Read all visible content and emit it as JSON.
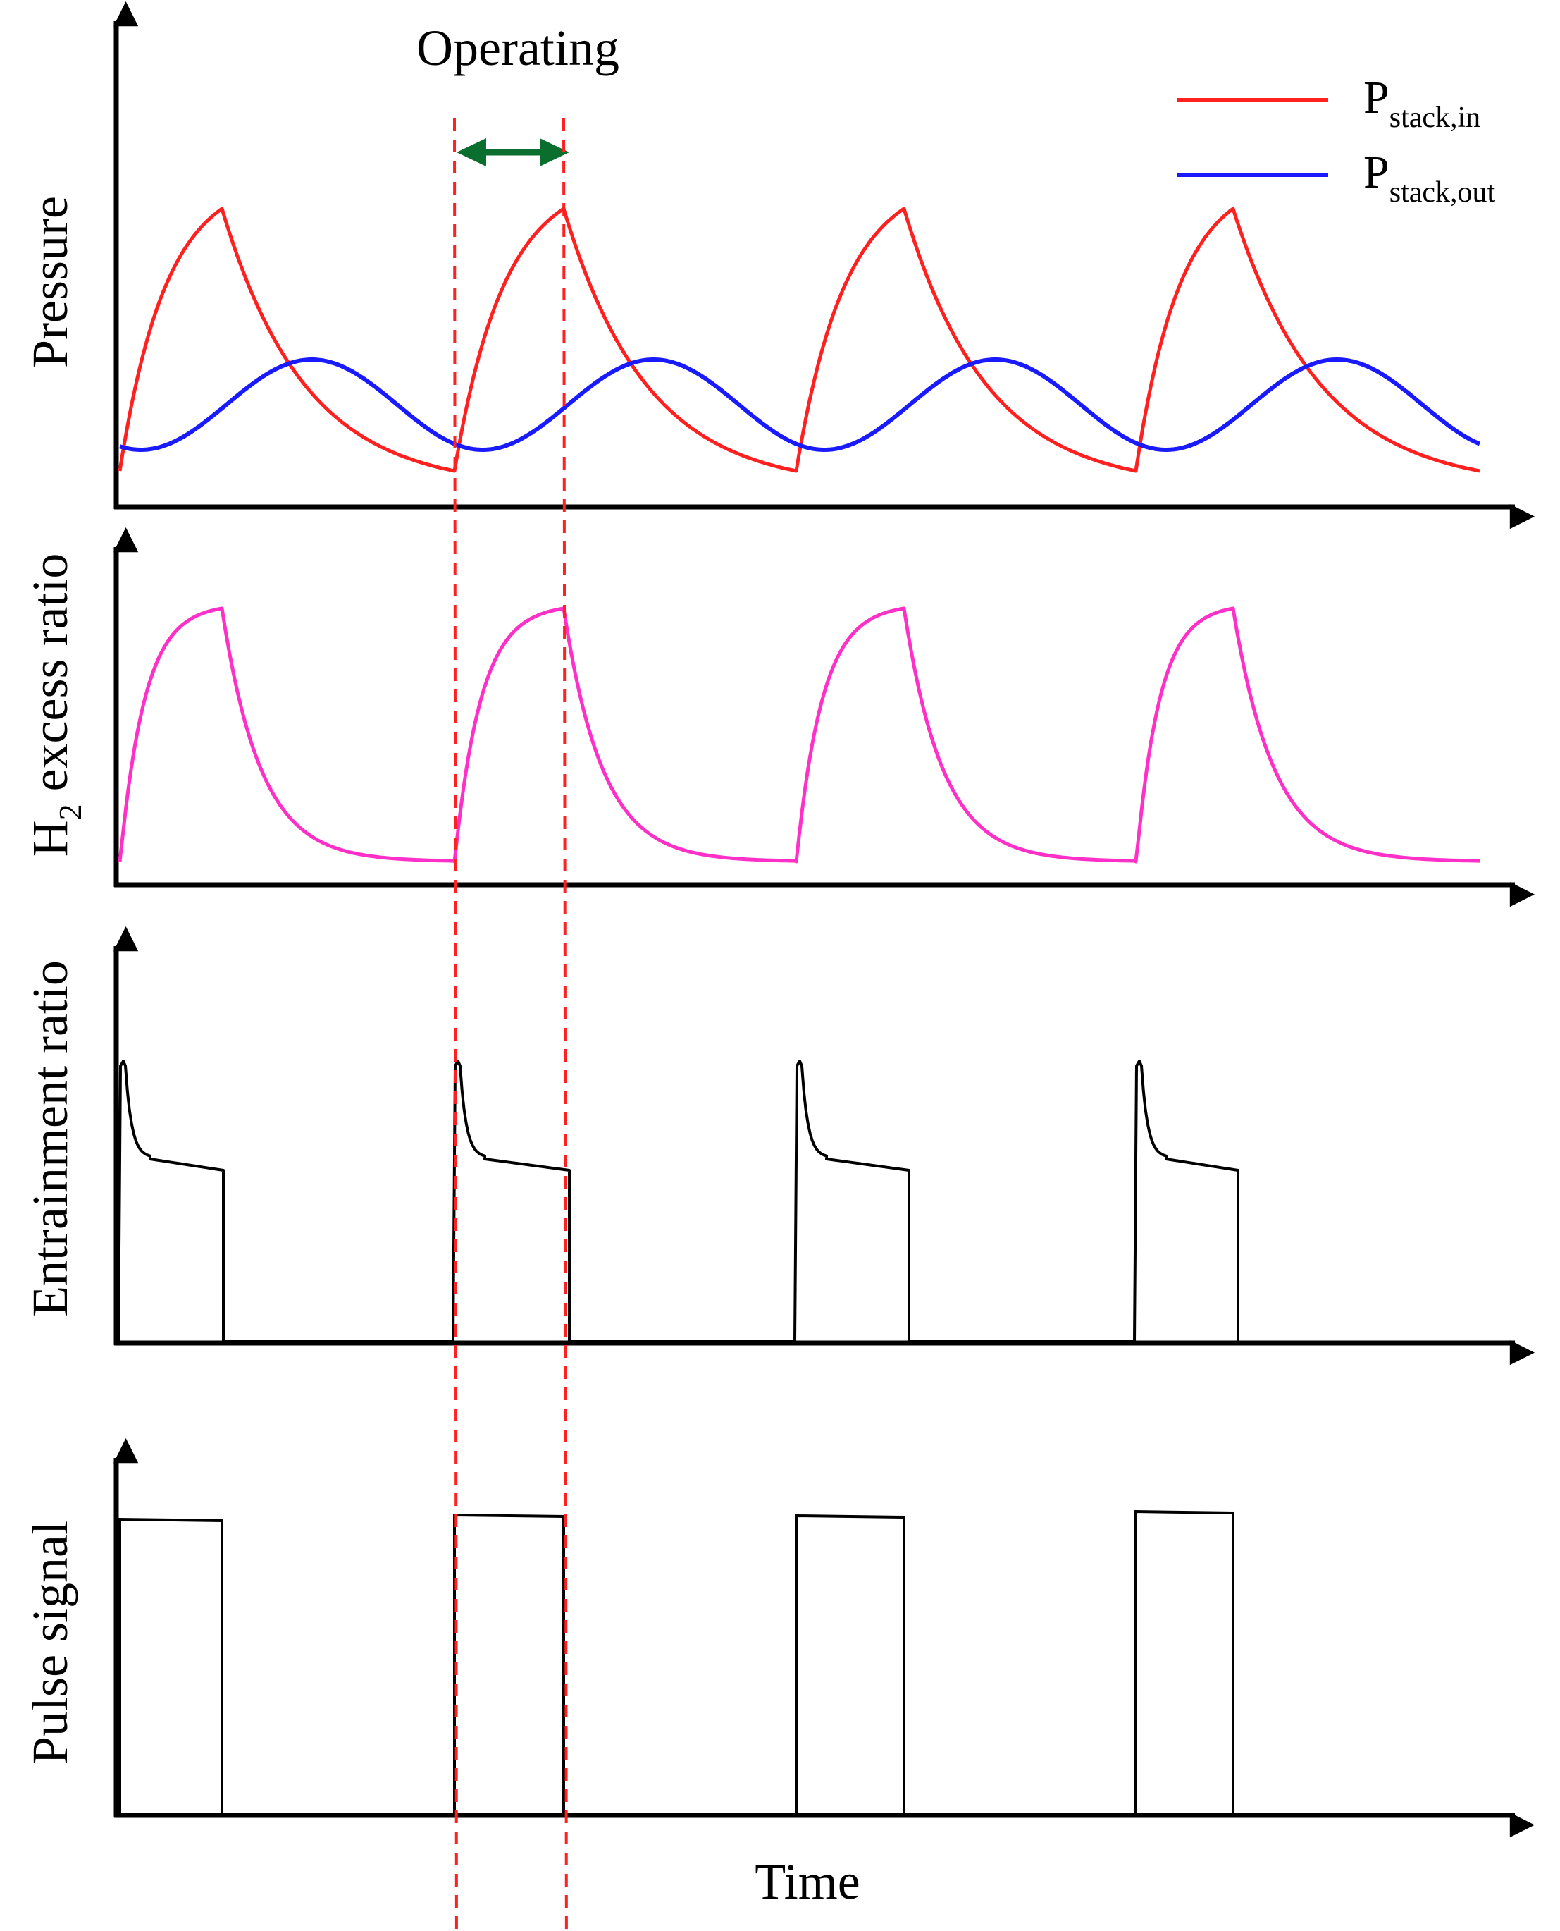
{
  "diagram": {
    "title": "Operating",
    "x_axis_label": "Time",
    "colors": {
      "p_in": "#ff2020",
      "p_out": "#1a1aff",
      "h2": "#ff30c8",
      "black": "#000000",
      "marker": "#ff2020",
      "arrow": "#0a6e2e"
    },
    "legend": [
      {
        "base": "P",
        "sub": "stack,in",
        "color_key": "p_in"
      },
      {
        "base": "P",
        "sub": "stack,out",
        "color_key": "p_out"
      }
    ],
    "panels": [
      {
        "id": "pressure",
        "label": "Pressure"
      },
      {
        "id": "h2",
        "label_base": "H",
        "label_sub": "2",
        "label_rest": " excess ratio"
      },
      {
        "id": "entrainment",
        "label": "Entrainment ratio"
      },
      {
        "id": "pulse",
        "label": "Pulse signal"
      }
    ],
    "pulses": 4
  }
}
